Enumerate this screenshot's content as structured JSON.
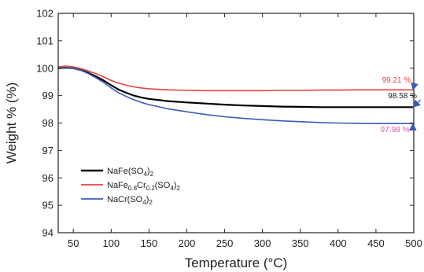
{
  "chart_data": {
    "type": "line",
    "xlabel": "Temperature (°C)",
    "ylabel": "Weight % (%)",
    "xlim": [
      30,
      500
    ],
    "ylim": [
      94,
      102
    ],
    "xticks": [
      50,
      100,
      150,
      200,
      250,
      300,
      350,
      400,
      450,
      500
    ],
    "yticks": [
      94,
      95,
      96,
      97,
      98,
      99,
      100,
      101,
      102
    ],
    "grid": false,
    "legend_position": "bottom-left",
    "series": [
      {
        "name": "NaFe(SO4)2",
        "color": "#000000",
        "x": [
          30,
          40,
          50,
          60,
          70,
          80,
          90,
          100,
          110,
          120,
          130,
          140,
          150,
          175,
          200,
          225,
          250,
          275,
          300,
          325,
          350,
          375,
          400,
          425,
          450,
          475,
          500
        ],
        "y": [
          100.0,
          100.02,
          100.0,
          99.93,
          99.83,
          99.7,
          99.55,
          99.38,
          99.22,
          99.1,
          99.0,
          98.93,
          98.88,
          98.8,
          98.75,
          98.71,
          98.67,
          98.64,
          98.62,
          98.6,
          98.59,
          98.58,
          98.58,
          98.58,
          98.58,
          98.58,
          98.58
        ]
      },
      {
        "name": "NaFe0.8Cr0.2(SO4)2",
        "color": "#e8413c",
        "x": [
          30,
          40,
          50,
          60,
          70,
          80,
          90,
          100,
          110,
          120,
          130,
          140,
          150,
          175,
          200,
          225,
          250,
          275,
          300,
          325,
          350,
          375,
          400,
          425,
          450,
          475,
          500
        ],
        "y": [
          100.05,
          100.08,
          100.05,
          99.98,
          99.9,
          99.8,
          99.68,
          99.55,
          99.45,
          99.38,
          99.32,
          99.28,
          99.25,
          99.21,
          99.19,
          99.18,
          99.18,
          99.18,
          99.18,
          99.19,
          99.19,
          99.2,
          99.2,
          99.21,
          99.21,
          99.21,
          99.21
        ]
      },
      {
        "name": "NaCr(SO4)2",
        "color": "#3b5bb5",
        "x": [
          30,
          40,
          50,
          60,
          70,
          80,
          90,
          100,
          110,
          120,
          130,
          140,
          150,
          175,
          200,
          225,
          250,
          275,
          300,
          325,
          350,
          375,
          400,
          425,
          450,
          475,
          500
        ],
        "y": [
          100.0,
          100.03,
          100.0,
          99.92,
          99.8,
          99.65,
          99.48,
          99.28,
          99.1,
          98.97,
          98.85,
          98.75,
          98.67,
          98.52,
          98.41,
          98.31,
          98.23,
          98.17,
          98.12,
          98.08,
          98.05,
          98.02,
          98.0,
          97.99,
          97.98,
          97.98,
          97.98
        ]
      }
    ],
    "annotations": [
      {
        "text": "99.21 %",
        "color": "#e8413c",
        "x": 458,
        "y": 99.48,
        "arrow_to": [
          500,
          99.21
        ]
      },
      {
        "text": "98.58 %",
        "color": "#222222",
        "x": 466,
        "y": 98.9,
        "arrow_to": [
          500,
          98.58
        ]
      },
      {
        "text": "97.98 %",
        "color": "#d65aa8",
        "x": 456,
        "y": 97.67,
        "arrow_to": [
          500,
          97.98
        ]
      }
    ],
    "legend": [
      {
        "label_parts": [
          [
            "NaFe(SO",
            ""
          ],
          [
            "4",
            "sub"
          ],
          [
            ")",
            ""
          ],
          [
            "2",
            "sub"
          ]
        ]
      },
      {
        "label_parts": [
          [
            "NaFe",
            ""
          ],
          [
            "0.8",
            "sub"
          ],
          [
            "Cr",
            ""
          ],
          [
            "0.2",
            "sub"
          ],
          [
            "(SO",
            ""
          ],
          [
            "4",
            "sub"
          ],
          [
            ")",
            ""
          ],
          [
            "2",
            "sub"
          ]
        ]
      },
      {
        "label_parts": [
          [
            "NaCr(SO",
            ""
          ],
          [
            "4",
            "sub"
          ],
          [
            ")",
            ""
          ],
          [
            "2",
            "sub"
          ]
        ]
      }
    ]
  }
}
